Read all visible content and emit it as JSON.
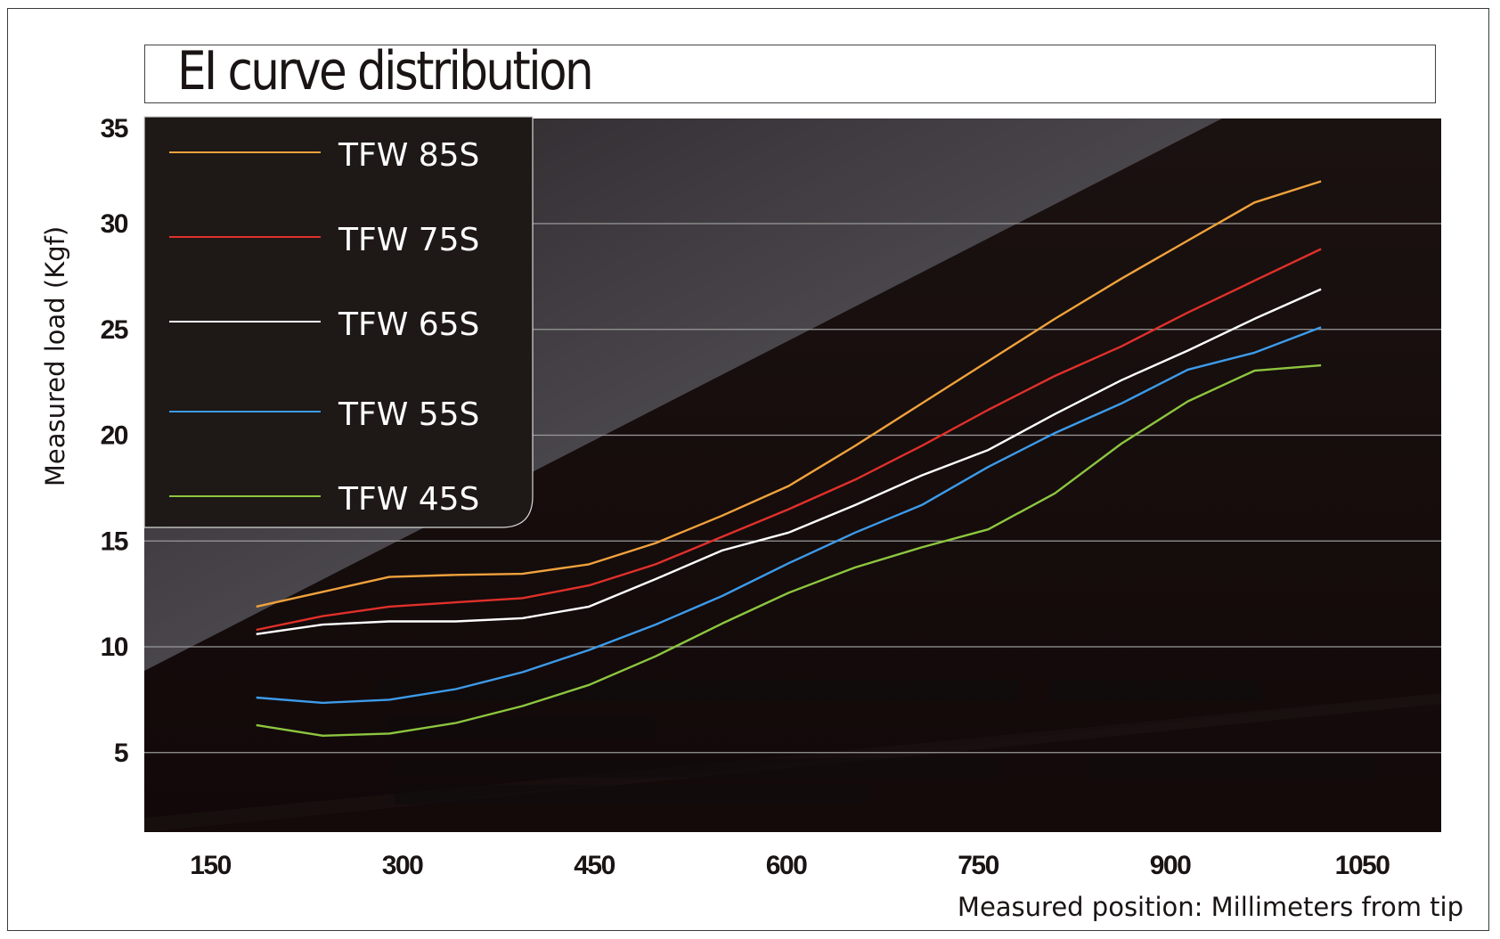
{
  "title": "EI curve distribution",
  "chart_data": {
    "type": "line",
    "title": "EI curve distribution",
    "xlabel": "Measured position: Millimeters from tip",
    "ylabel": "Measured load (Kgf)",
    "xlim": [
      100,
      1100
    ],
    "ylim": [
      1.3,
      35
    ],
    "x_ticks": [
      150,
      300,
      450,
      600,
      750,
      900,
      1050
    ],
    "y_ticks": [
      5,
      10,
      15,
      20,
      25,
      30,
      35
    ],
    "grid": "horizontal",
    "legend_position": "top-left",
    "x": [
      186,
      238,
      290,
      342,
      394,
      446,
      498,
      550,
      602,
      654,
      706,
      758,
      810,
      862,
      914,
      966,
      1018
    ],
    "series": [
      {
        "name": "TFW 85S",
        "color": "#f0a23c",
        "values": [
          11.9,
          12.6,
          13.3,
          13.4,
          13.45,
          13.9,
          14.9,
          16.2,
          17.6,
          19.5,
          21.5,
          23.5,
          25.5,
          27.4,
          29.2,
          31.0,
          32.0
        ]
      },
      {
        "name": "TFW 75S",
        "color": "#e0302a",
        "values": [
          10.8,
          11.45,
          11.9,
          12.1,
          12.3,
          12.9,
          13.9,
          15.2,
          16.5,
          17.9,
          19.5,
          21.2,
          22.8,
          24.2,
          25.8,
          27.3,
          28.8
        ]
      },
      {
        "name": "TFW 65S",
        "color": "#ffffff",
        "values": [
          10.6,
          11.05,
          11.2,
          11.2,
          11.35,
          11.9,
          13.2,
          14.55,
          15.4,
          16.7,
          18.1,
          19.3,
          21.0,
          22.6,
          24.0,
          25.5,
          26.9
        ]
      },
      {
        "name": "TFW 55S",
        "color": "#3d9be9",
        "values": [
          7.6,
          7.35,
          7.5,
          8.0,
          8.8,
          9.85,
          11.05,
          12.4,
          13.95,
          15.4,
          16.7,
          18.5,
          20.1,
          21.5,
          23.1,
          23.9,
          25.1
        ]
      },
      {
        "name": "TFW 45S",
        "color": "#8dc63f",
        "values": [
          6.3,
          5.8,
          5.9,
          6.4,
          7.2,
          8.2,
          9.55,
          11.1,
          12.55,
          13.75,
          14.7,
          15.55,
          17.25,
          19.6,
          21.6,
          23.05,
          23.3
        ]
      }
    ]
  },
  "colors": {
    "plot_background": "#1a1210",
    "highlight_band": "#4c494f",
    "legend_background": "#1e1816",
    "gridline": "#9a9a9a"
  }
}
